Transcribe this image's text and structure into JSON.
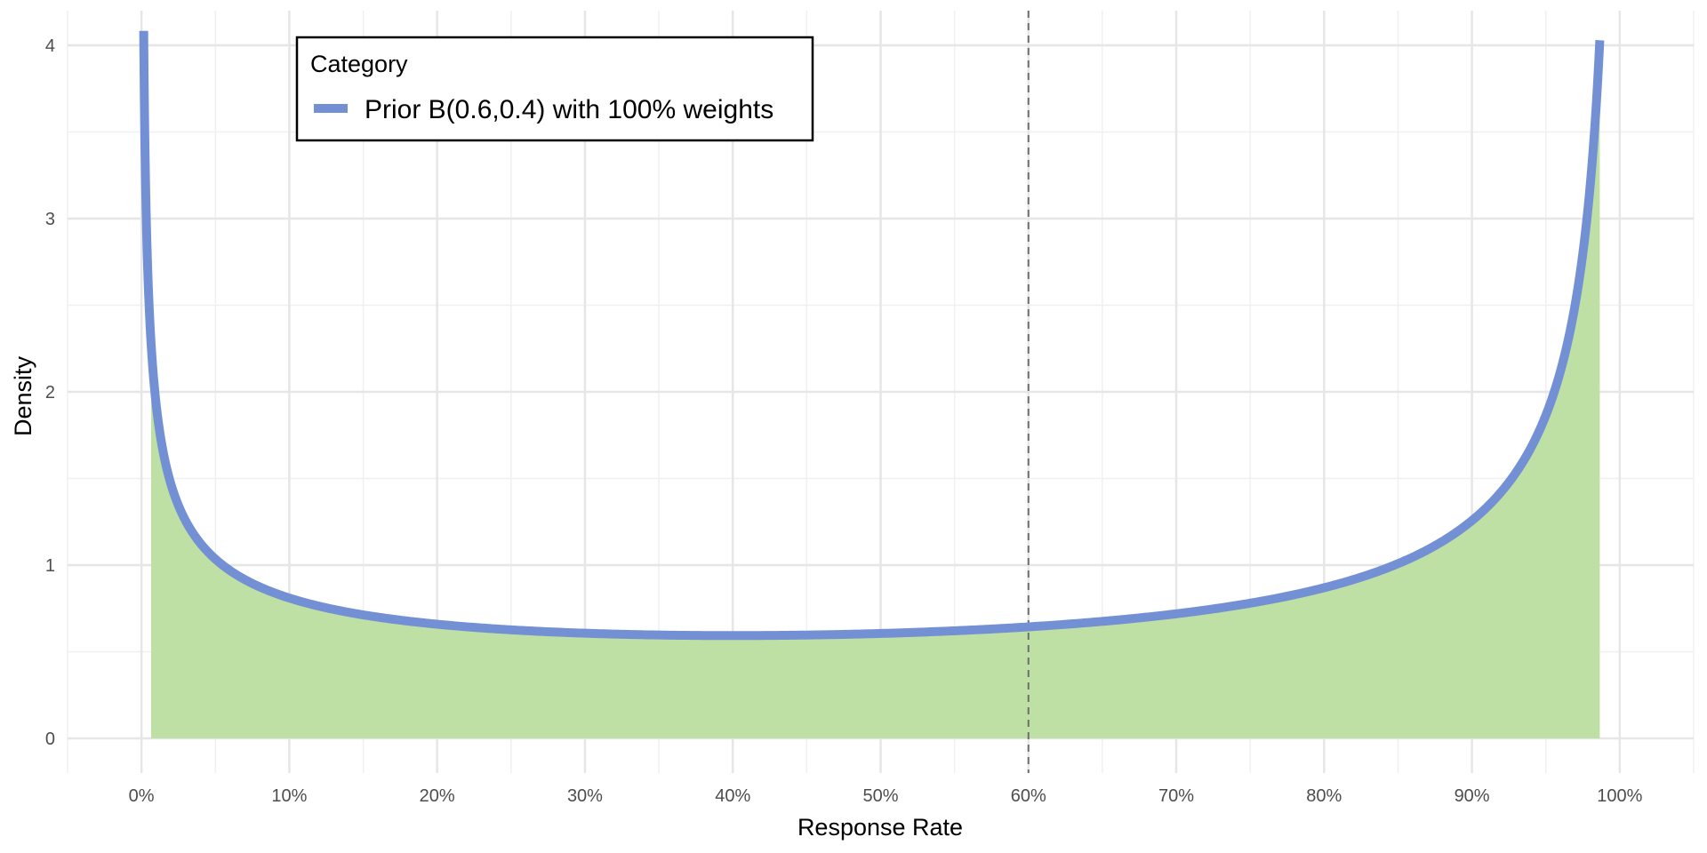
{
  "chart_data": {
    "type": "area",
    "xlabel": "Response Rate",
    "ylabel": "Density",
    "x_ticks": [
      {
        "value": 0.0,
        "label": "0%"
      },
      {
        "value": 0.1,
        "label": "10%"
      },
      {
        "value": 0.2,
        "label": "20%"
      },
      {
        "value": 0.3,
        "label": "30%"
      },
      {
        "value": 0.4,
        "label": "40%"
      },
      {
        "value": 0.5,
        "label": "50%"
      },
      {
        "value": 0.6,
        "label": "60%"
      },
      {
        "value": 0.7,
        "label": "70%"
      },
      {
        "value": 0.8,
        "label": "80%"
      },
      {
        "value": 0.9,
        "label": "90%"
      },
      {
        "value": 1.0,
        "label": "100%"
      }
    ],
    "y_ticks": [
      {
        "value": 0,
        "label": "0"
      },
      {
        "value": 1,
        "label": "1"
      },
      {
        "value": 2,
        "label": "2"
      },
      {
        "value": 3,
        "label": "3"
      },
      {
        "value": 4,
        "label": "4"
      }
    ],
    "xlim": [
      -0.05,
      1.05
    ],
    "ylim": [
      -0.2,
      4.2
    ],
    "grid": true,
    "legend": {
      "title": "Category",
      "placement": "top-left",
      "entries": [
        {
          "label": "Prior B(0.6,0.4) with 100% weights",
          "color": "#7490d4"
        }
      ]
    },
    "series": [
      {
        "name": "Prior B(0.6,0.4) with 100% weights",
        "color": "#7490d4",
        "distribution": "beta",
        "alpha": 0.6,
        "beta": 0.4,
        "x_range": [
          0.0015,
          0.9865
        ],
        "x": [
          0.0015,
          0.005,
          0.01,
          0.02,
          0.05,
          0.1,
          0.2,
          0.3,
          0.4,
          0.5,
          0.6,
          0.7,
          0.8,
          0.9,
          0.95,
          0.98,
          0.9865
        ],
        "y": [
          3.63,
          2.19,
          1.66,
          1.26,
          0.96,
          0.79,
          0.67,
          0.62,
          0.6,
          0.61,
          0.64,
          0.71,
          0.86,
          1.26,
          1.85,
          3.1,
          3.94
        ]
      }
    ],
    "shaded_area": {
      "color": "#bfe0a4",
      "x_range": [
        0.0065,
        0.9865
      ]
    },
    "reference_lines": [
      {
        "orientation": "vertical",
        "x": 0.6,
        "style": "dashed",
        "color": "#6e6e6e"
      }
    ]
  }
}
